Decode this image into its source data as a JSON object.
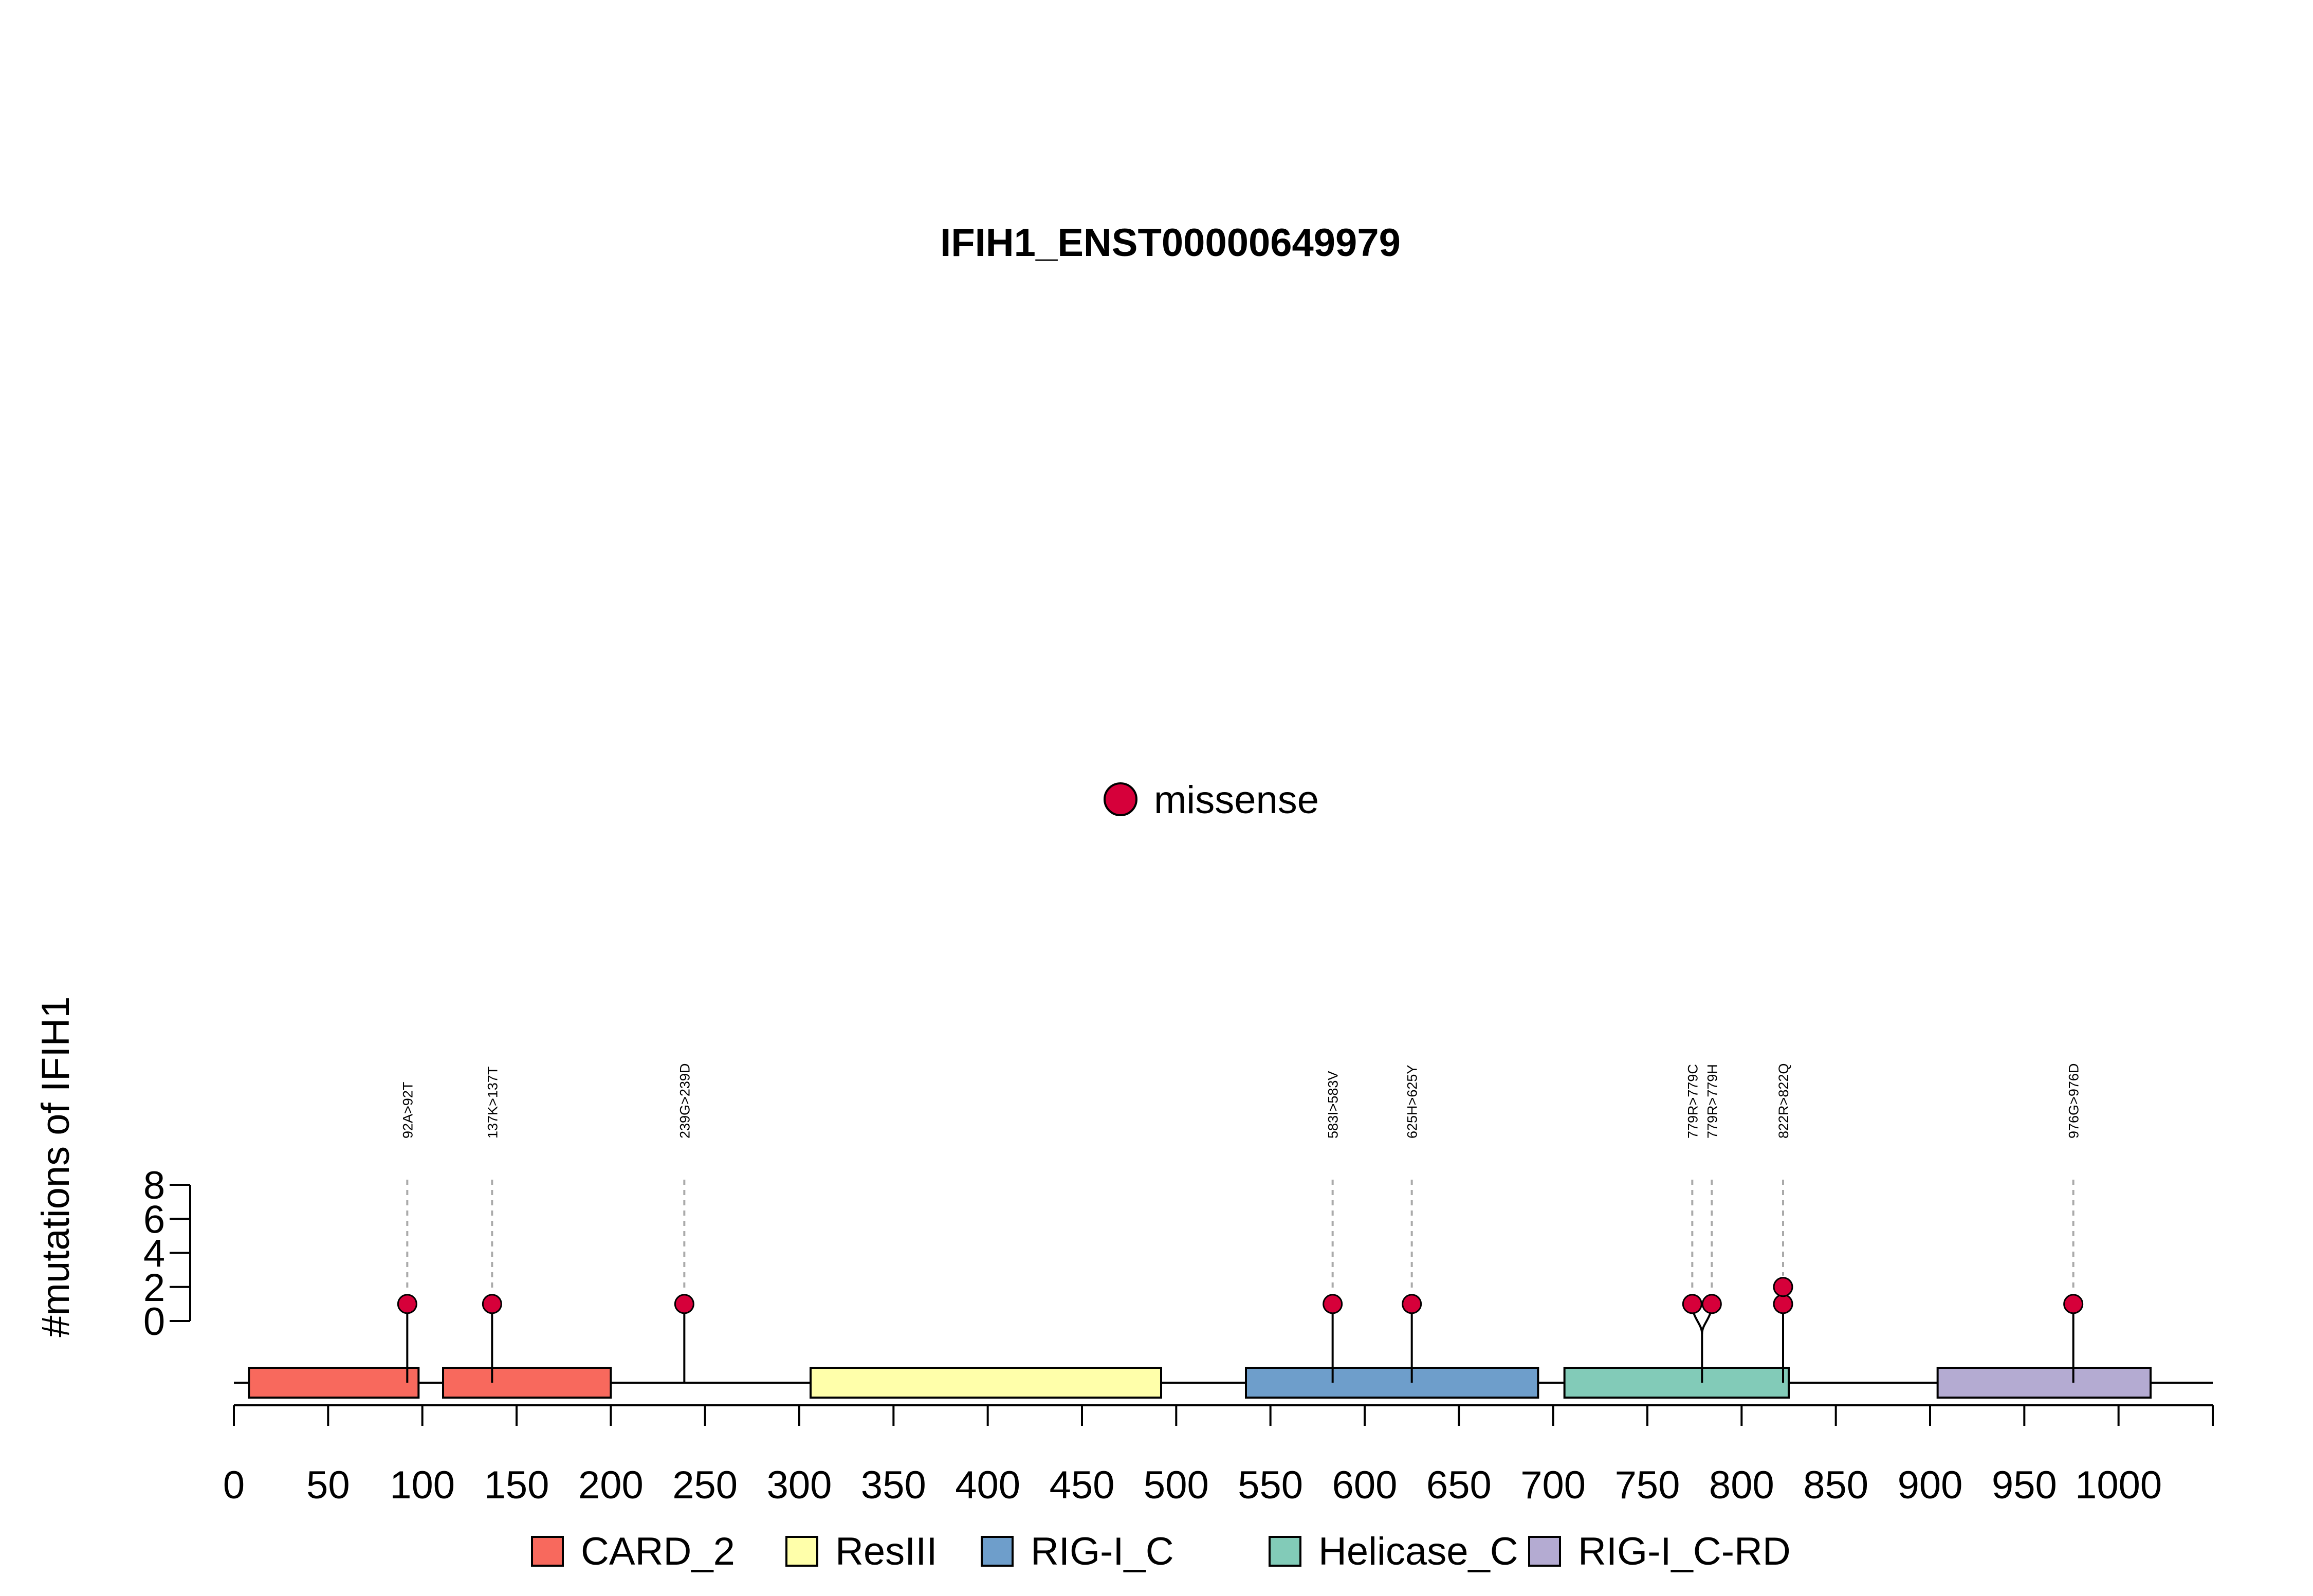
{
  "chart_data": {
    "type": "lollipop",
    "title": "IFIH1_ENST00000649979",
    "ylabel": "#mutations of IFIH1",
    "xlabel": "",
    "xlim": [
      0,
      1050
    ],
    "x_ticks": [
      0,
      50,
      100,
      150,
      200,
      250,
      300,
      350,
      400,
      450,
      500,
      550,
      600,
      650,
      700,
      750,
      800,
      850,
      900,
      950,
      1000
    ],
    "y_ticks": [
      0,
      2,
      4,
      6,
      8
    ],
    "ylim": [
      0,
      8
    ],
    "mutation_legend": [
      {
        "label": "missense",
        "color": "#d6003a"
      }
    ],
    "domains": [
      {
        "name": "CARD_2",
        "start": 8,
        "end": 98,
        "color": "#f8695d"
      },
      {
        "name": "CARD_2",
        "start": 111,
        "end": 200,
        "color": "#f8695d"
      },
      {
        "name": "ResIII",
        "start": 306,
        "end": 492,
        "color": "#ffffaa"
      },
      {
        "name": "RIG-I_C",
        "start": 537,
        "end": 692,
        "color": "#6e9ecb"
      },
      {
        "name": "Helicase_C",
        "start": 706,
        "end": 825,
        "color": "#82cbb8"
      },
      {
        "name": "RIG-I_C-RD",
        "start": 904,
        "end": 1017,
        "color": "#b4abd2"
      }
    ],
    "domain_legend": [
      {
        "name": "CARD_2",
        "color": "#f8695d"
      },
      {
        "name": "ResIII",
        "color": "#ffffaa"
      },
      {
        "name": "RIG-I_C",
        "color": "#6e9ecb"
      },
      {
        "name": "Helicase_C",
        "color": "#82cbb8"
      },
      {
        "name": "RIG-I_C-RD",
        "color": "#b4abd2"
      }
    ],
    "mutations": [
      {
        "label": "92A>92T",
        "position": 92,
        "count": 1,
        "type": "missense"
      },
      {
        "label": "137K>137T",
        "position": 137,
        "count": 1,
        "type": "missense"
      },
      {
        "label": "239G>239D",
        "position": 239,
        "count": 1,
        "type": "missense"
      },
      {
        "label": "583I>583V",
        "position": 583,
        "count": 1,
        "type": "missense"
      },
      {
        "label": "625H>625Y",
        "position": 625,
        "count": 1,
        "type": "missense"
      },
      {
        "label": "779R>779C",
        "position": 779,
        "count": 1,
        "type": "missense"
      },
      {
        "label": "779R>779H",
        "position": 779,
        "count": 1,
        "type": "missense"
      },
      {
        "label": "822R>822Q",
        "position": 822,
        "count": 2,
        "type": "missense"
      },
      {
        "label": "976G>976D",
        "position": 976,
        "count": 1,
        "type": "missense"
      }
    ]
  }
}
